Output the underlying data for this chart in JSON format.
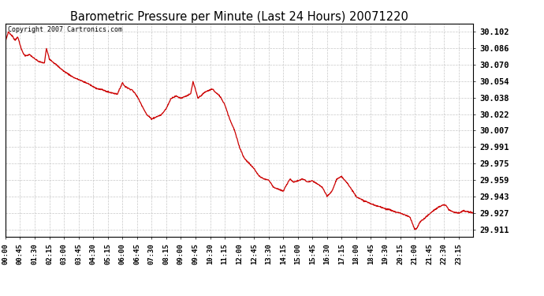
{
  "title": "Barometric Pressure per Minute (Last 24 Hours) 20071220",
  "copyright": "Copyright 2007 Cartronics.com",
  "line_color": "#cc0000",
  "background_color": "#ffffff",
  "grid_color": "#c8c8c8",
  "yticks": [
    30.102,
    30.086,
    30.07,
    30.054,
    30.038,
    30.022,
    30.007,
    29.991,
    29.975,
    29.959,
    29.943,
    29.927,
    29.911
  ],
  "ylim": [
    29.904,
    30.11
  ],
  "xtick_labels": [
    "00:00",
    "00:45",
    "01:30",
    "02:15",
    "03:00",
    "03:45",
    "04:30",
    "05:15",
    "06:00",
    "06:45",
    "07:30",
    "08:15",
    "09:00",
    "09:45",
    "10:30",
    "11:15",
    "12:00",
    "12:45",
    "13:30",
    "14:15",
    "15:00",
    "15:45",
    "16:30",
    "17:15",
    "18:00",
    "18:45",
    "19:30",
    "20:15",
    "21:00",
    "21:45",
    "22:30",
    "23:15"
  ],
  "ctrl_points": [
    [
      0.0,
      30.093
    ],
    [
      0.15,
      30.102
    ],
    [
      0.35,
      30.098
    ],
    [
      0.5,
      30.094
    ],
    [
      0.6,
      30.097
    ],
    [
      0.65,
      30.096
    ],
    [
      0.75,
      30.09
    ],
    [
      0.8,
      30.086
    ],
    [
      0.9,
      30.082
    ],
    [
      1.0,
      30.079
    ],
    [
      1.25,
      30.08
    ],
    [
      1.5,
      30.076
    ],
    [
      1.75,
      30.073
    ],
    [
      2.0,
      30.072
    ],
    [
      2.1,
      30.086
    ],
    [
      2.2,
      30.08
    ],
    [
      2.25,
      30.076
    ],
    [
      2.5,
      30.072
    ],
    [
      2.75,
      30.068
    ],
    [
      3.0,
      30.064
    ],
    [
      3.25,
      30.061
    ],
    [
      3.5,
      30.058
    ],
    [
      3.75,
      30.056
    ],
    [
      4.0,
      30.054
    ],
    [
      4.25,
      30.052
    ],
    [
      4.5,
      30.049
    ],
    [
      4.75,
      30.047
    ],
    [
      5.0,
      30.046
    ],
    [
      5.25,
      30.044
    ],
    [
      5.5,
      30.043
    ],
    [
      5.75,
      30.042
    ],
    [
      6.0,
      30.053
    ],
    [
      6.1,
      30.05
    ],
    [
      6.25,
      30.048
    ],
    [
      6.5,
      30.046
    ],
    [
      6.75,
      30.04
    ],
    [
      7.0,
      30.031
    ],
    [
      7.25,
      30.022
    ],
    [
      7.5,
      30.018
    ],
    [
      7.75,
      30.02
    ],
    [
      8.0,
      30.022
    ],
    [
      8.25,
      30.028
    ],
    [
      8.5,
      30.038
    ],
    [
      8.75,
      30.04
    ],
    [
      9.0,
      30.038
    ],
    [
      9.25,
      30.04
    ],
    [
      9.5,
      30.042
    ],
    [
      9.625,
      30.054
    ],
    [
      9.75,
      30.046
    ],
    [
      9.875,
      30.038
    ],
    [
      10.0,
      30.04
    ],
    [
      10.25,
      30.044
    ],
    [
      10.5,
      30.046
    ],
    [
      10.625,
      30.047
    ],
    [
      10.75,
      30.044
    ],
    [
      11.0,
      30.04
    ],
    [
      11.25,
      30.032
    ],
    [
      11.5,
      30.018
    ],
    [
      11.75,
      30.007
    ],
    [
      12.0,
      29.991
    ],
    [
      12.25,
      29.98
    ],
    [
      12.5,
      29.975
    ],
    [
      12.75,
      29.97
    ],
    [
      13.0,
      29.963
    ],
    [
      13.25,
      29.96
    ],
    [
      13.5,
      29.959
    ],
    [
      13.75,
      29.952
    ],
    [
      14.0,
      29.95
    ],
    [
      14.25,
      29.948
    ],
    [
      14.5,
      29.957
    ],
    [
      14.6,
      29.96
    ],
    [
      14.75,
      29.957
    ],
    [
      15.0,
      29.958
    ],
    [
      15.25,
      29.96
    ],
    [
      15.5,
      29.957
    ],
    [
      15.75,
      29.958
    ],
    [
      16.0,
      29.955
    ],
    [
      16.25,
      29.952
    ],
    [
      16.5,
      29.943
    ],
    [
      16.75,
      29.948
    ],
    [
      17.0,
      29.96
    ],
    [
      17.25,
      29.962
    ],
    [
      17.5,
      29.957
    ],
    [
      17.75,
      29.95
    ],
    [
      18.0,
      29.943
    ],
    [
      18.25,
      29.94
    ],
    [
      18.5,
      29.938
    ],
    [
      18.75,
      29.936
    ],
    [
      19.0,
      29.934
    ],
    [
      19.25,
      29.933
    ],
    [
      19.5,
      29.931
    ],
    [
      19.75,
      29.93
    ],
    [
      20.0,
      29.928
    ],
    [
      20.25,
      29.927
    ],
    [
      20.5,
      29.925
    ],
    [
      20.75,
      29.923
    ],
    [
      21.0,
      29.911
    ],
    [
      21.1,
      29.912
    ],
    [
      21.25,
      29.918
    ],
    [
      21.5,
      29.922
    ],
    [
      21.75,
      29.926
    ],
    [
      22.0,
      29.93
    ],
    [
      22.25,
      29.933
    ],
    [
      22.5,
      29.935
    ],
    [
      22.625,
      29.934
    ],
    [
      22.75,
      29.93
    ],
    [
      23.0,
      29.928
    ],
    [
      23.25,
      29.927
    ],
    [
      23.5,
      29.929
    ],
    [
      23.75,
      29.928
    ],
    [
      24.0,
      29.927
    ]
  ]
}
